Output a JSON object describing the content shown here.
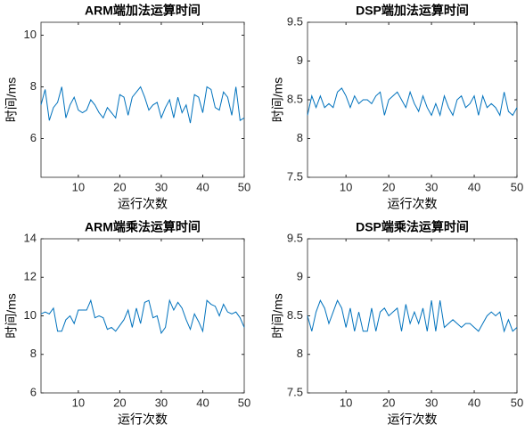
{
  "chart_data": [
    {
      "type": "line",
      "title": "ARM端加法运算时间",
      "xlabel": "运行次数",
      "ylabel": "时间/ms",
      "color": "#0072bd",
      "x": [
        1,
        2,
        3,
        4,
        5,
        6,
        7,
        8,
        9,
        10,
        11,
        12,
        13,
        14,
        15,
        16,
        17,
        18,
        19,
        20,
        21,
        22,
        23,
        24,
        25,
        26,
        27,
        28,
        29,
        30,
        31,
        32,
        33,
        34,
        35,
        36,
        37,
        38,
        39,
        40,
        41,
        42,
        43,
        44,
        45,
        46,
        47,
        48,
        49,
        50
      ],
      "values": [
        7.3,
        7.9,
        6.7,
        7.2,
        7.4,
        8.0,
        6.8,
        7.3,
        7.6,
        7.1,
        7.0,
        7.1,
        7.5,
        7.3,
        7.0,
        6.8,
        7.2,
        7.0,
        6.8,
        7.7,
        7.6,
        6.9,
        7.6,
        7.8,
        8.0,
        7.6,
        7.1,
        7.3,
        7.4,
        6.8,
        7.2,
        7.5,
        6.8,
        7.6,
        7.0,
        7.3,
        6.6,
        7.7,
        7.6,
        7.0,
        8.0,
        7.9,
        7.2,
        7.1,
        7.8,
        7.6,
        6.9,
        8.0,
        6.7,
        6.8
      ],
      "xlim": [
        1,
        50
      ],
      "xticks": [
        10,
        20,
        30,
        40,
        50
      ],
      "ylim": [
        4.5,
        10.5
      ],
      "yticks": [
        6,
        8,
        10
      ]
    },
    {
      "type": "line",
      "title": "DSP端加法运算时间",
      "xlabel": "运行次数",
      "ylabel": "时间/ms",
      "color": "#0072bd",
      "x": [
        1,
        2,
        3,
        4,
        5,
        6,
        7,
        8,
        9,
        10,
        11,
        12,
        13,
        14,
        15,
        16,
        17,
        18,
        19,
        20,
        21,
        22,
        23,
        24,
        25,
        26,
        27,
        28,
        29,
        30,
        31,
        32,
        33,
        34,
        35,
        36,
        37,
        38,
        39,
        40,
        41,
        42,
        43,
        44,
        45,
        46,
        47,
        48,
        49,
        50
      ],
      "values": [
        8.3,
        8.55,
        8.4,
        8.55,
        8.4,
        8.45,
        8.4,
        8.6,
        8.65,
        8.55,
        8.4,
        8.55,
        8.45,
        8.5,
        8.5,
        8.45,
        8.55,
        8.6,
        8.3,
        8.5,
        8.55,
        8.6,
        8.5,
        8.4,
        8.6,
        8.45,
        8.35,
        8.55,
        8.4,
        8.3,
        8.45,
        8.3,
        8.55,
        8.4,
        8.3,
        8.5,
        8.55,
        8.4,
        8.45,
        8.55,
        8.3,
        8.55,
        8.4,
        8.45,
        8.4,
        8.3,
        8.6,
        8.35,
        8.3,
        8.4
      ],
      "xlim": [
        1,
        50
      ],
      "xticks": [
        10,
        20,
        30,
        40,
        50
      ],
      "ylim": [
        7.5,
        9.5
      ],
      "yticks": [
        7.5,
        8,
        8.5,
        9,
        9.5
      ]
    },
    {
      "type": "line",
      "title": "ARM端乘法运算时间",
      "xlabel": "运行次数",
      "ylabel": "时间/ms",
      "color": "#0072bd",
      "x": [
        1,
        2,
        3,
        4,
        5,
        6,
        7,
        8,
        9,
        10,
        11,
        12,
        13,
        14,
        15,
        16,
        17,
        18,
        19,
        20,
        21,
        22,
        23,
        24,
        25,
        26,
        27,
        28,
        29,
        30,
        31,
        32,
        33,
        34,
        35,
        36,
        37,
        38,
        39,
        40,
        41,
        42,
        43,
        44,
        45,
        46,
        47,
        48,
        49,
        50
      ],
      "values": [
        10.1,
        10.2,
        10.1,
        10.4,
        9.2,
        9.2,
        9.8,
        10.0,
        9.6,
        10.3,
        10.3,
        10.3,
        10.8,
        9.9,
        10.0,
        9.9,
        9.3,
        9.4,
        9.2,
        9.5,
        9.8,
        10.3,
        9.4,
        10.4,
        9.6,
        10.7,
        10.8,
        9.9,
        10.0,
        9.1,
        9.4,
        10.8,
        10.3,
        10.7,
        10.4,
        9.8,
        9.3,
        10.1,
        9.7,
        9.2,
        10.8,
        10.6,
        10.5,
        10.0,
        10.6,
        10.2,
        10.1,
        10.2,
        9.9,
        9.4
      ],
      "xlim": [
        1,
        50
      ],
      "xticks": [
        10,
        20,
        30,
        40,
        50
      ],
      "ylim": [
        6,
        14
      ],
      "yticks": [
        6,
        8,
        10,
        12,
        14
      ]
    },
    {
      "type": "line",
      "title": "DSP端乘法运算时间",
      "xlabel": "运行次数",
      "ylabel": "时间/ms",
      "color": "#0072bd",
      "x": [
        1,
        2,
        3,
        4,
        5,
        6,
        7,
        8,
        9,
        10,
        11,
        12,
        13,
        14,
        15,
        16,
        17,
        18,
        19,
        20,
        21,
        22,
        23,
        24,
        25,
        26,
        27,
        28,
        29,
        30,
        31,
        32,
        33,
        34,
        35,
        36,
        37,
        38,
        39,
        40,
        41,
        42,
        43,
        44,
        45,
        46,
        47,
        48,
        49,
        50
      ],
      "values": [
        8.5,
        8.3,
        8.55,
        8.7,
        8.6,
        8.4,
        8.55,
        8.7,
        8.6,
        8.35,
        8.6,
        8.3,
        8.55,
        8.3,
        8.3,
        8.6,
        8.3,
        8.55,
        8.6,
        8.5,
        8.55,
        8.6,
        8.3,
        8.65,
        8.4,
        8.55,
        8.4,
        8.6,
        8.3,
        8.7,
        8.3,
        8.7,
        8.35,
        8.4,
        8.45,
        8.4,
        8.35,
        8.4,
        8.4,
        8.35,
        8.3,
        8.4,
        8.5,
        8.55,
        8.5,
        8.55,
        8.3,
        8.45,
        8.3,
        8.35
      ],
      "xlim": [
        1,
        50
      ],
      "xticks": [
        10,
        20,
        30,
        40,
        50
      ],
      "ylim": [
        7.5,
        9.5
      ],
      "yticks": [
        7.5,
        8,
        8.5,
        9,
        9.5
      ]
    }
  ]
}
